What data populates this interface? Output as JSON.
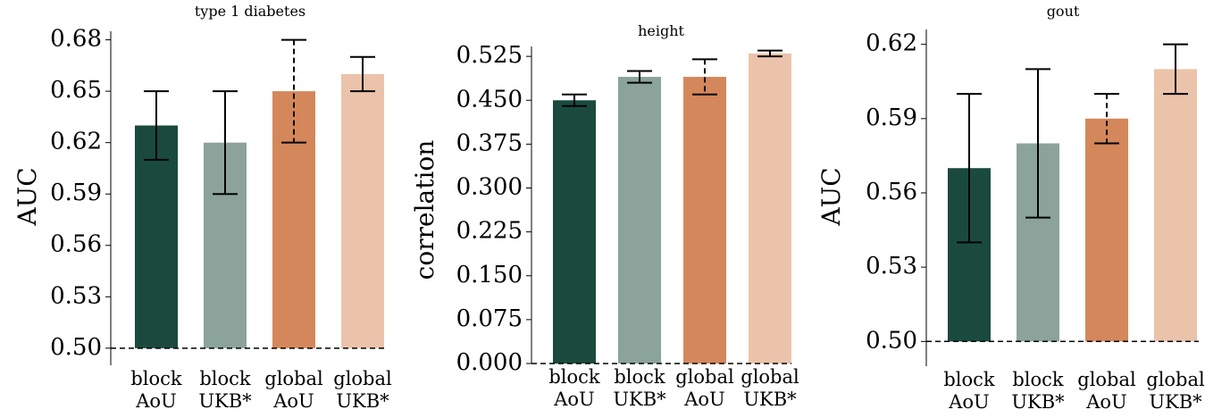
{
  "chart_data": [
    {
      "type": "bar",
      "title": "type 1 diabetes",
      "y_label": "AUC",
      "categories": [
        [
          "block",
          "AoU"
        ],
        [
          "block",
          "UKB*"
        ],
        [
          "global",
          "AoU"
        ],
        [
          "global",
          "UKB*"
        ]
      ],
      "values": [
        0.63,
        0.62,
        0.65,
        0.66
      ],
      "ci_upper": [
        0.65,
        0.65,
        0.68,
        0.67
      ],
      "ci_lower": [
        0.61,
        0.59,
        0.62,
        0.65
      ],
      "error_dashed": [
        false,
        false,
        true,
        false
      ],
      "colors": [
        "#1a4a3e",
        "#8ba39a",
        "#d4875a",
        "#ebc3ab"
      ],
      "baseline": 0.5,
      "ylim": [
        0.49,
        0.685
      ],
      "yticks": [
        {
          "value": 0.5,
          "label": "0.50"
        },
        0.53,
        0.56,
        0.59,
        0.62,
        0.65,
        0.68
      ]
    },
    {
      "type": "bar",
      "title": "height",
      "y_label": "correlation",
      "categories": [
        [
          "block",
          "AoU"
        ],
        [
          "block",
          "UKB*"
        ],
        [
          "global",
          "AoU"
        ],
        [
          "global",
          "UKB*"
        ]
      ],
      "values": [
        0.45,
        0.49,
        0.49,
        0.53
      ],
      "ci_upper": [
        0.46,
        0.5,
        0.52,
        0.535
      ],
      "ci_lower": [
        0.44,
        0.48,
        0.46,
        0.525
      ],
      "error_dashed": [
        false,
        false,
        true,
        false
      ],
      "colors": [
        "#1a4a3e",
        "#8ba39a",
        "#d4875a",
        "#ebc3ab"
      ],
      "baseline": 0,
      "ylim": [
        0,
        0.542
      ],
      "yticks": [
        {
          "value": 0,
          "label": "0.000"
        },
        0.075,
        {
          "value": 0.15,
          "label": "0.150"
        },
        0.225,
        {
          "value": 0.3,
          "label": "0.300"
        },
        0.375,
        {
          "value": 0.45,
          "label": "0.450"
        },
        0.525
      ]
    },
    {
      "type": "bar",
      "title": "gout",
      "y_label": "AUC",
      "categories": [
        [
          "block",
          "AoU"
        ],
        [
          "block",
          "UKB*"
        ],
        [
          "global",
          "AoU"
        ],
        [
          "global",
          "UKB*"
        ]
      ],
      "values": [
        0.57,
        0.58,
        0.59,
        0.61
      ],
      "ci_upper": [
        0.6,
        0.61,
        0.6,
        0.62
      ],
      "ci_lower": [
        0.54,
        0.55,
        0.58,
        0.6
      ],
      "error_dashed": [
        false,
        false,
        true,
        false
      ],
      "colors": [
        "#1a4a3e",
        "#8ba39a",
        "#d4875a",
        "#ebc3ab"
      ],
      "baseline": 0.5,
      "ylim": [
        0.49,
        0.626
      ],
      "yticks": [
        {
          "value": 0.5,
          "label": "0.50"
        },
        0.53,
        0.56,
        0.59,
        0.62
      ]
    }
  ]
}
